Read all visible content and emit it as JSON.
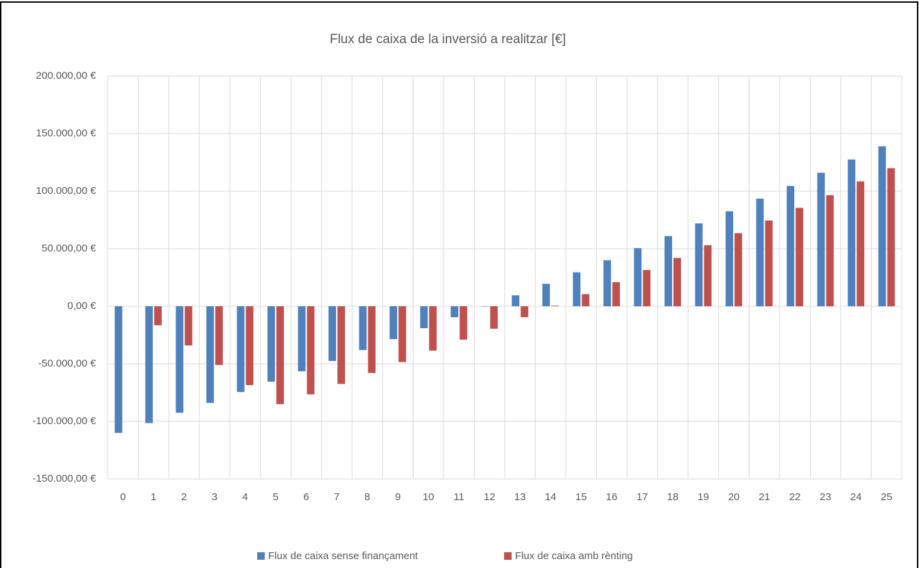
{
  "chart_data": {
    "type": "bar",
    "title": "Flux de caixa de la inversió a realitzar [€]",
    "categories": [
      "0",
      "1",
      "2",
      "3",
      "4",
      "5",
      "6",
      "7",
      "8",
      "9",
      "10",
      "11",
      "12",
      "13",
      "14",
      "15",
      "16",
      "17",
      "18",
      "19",
      "20",
      "21",
      "22",
      "23",
      "24",
      "25"
    ],
    "series": [
      {
        "name": "Flux de caixa sense finançament",
        "color": "#4f81bd",
        "values": [
          -110000,
          -101500,
          -92500,
          -84000,
          -74500,
          -65500,
          -56500,
          -47500,
          -38000,
          -28500,
          -19000,
          -9500,
          -300,
          9500,
          19500,
          29500,
          40000,
          50500,
          61000,
          72000,
          82500,
          93500,
          104500,
          116000,
          127500,
          139000
        ]
      },
      {
        "name": "Flux de caixa amb rènting",
        "color": "#c0504d",
        "values": [
          0,
          -16500,
          -34000,
          -51000,
          -68500,
          -85000,
          -76500,
          -67500,
          -58000,
          -48500,
          -38500,
          -29000,
          -19500,
          -9500,
          500,
          10500,
          21000,
          31500,
          42000,
          53000,
          63500,
          74500,
          85500,
          96500,
          108500,
          120000
        ]
      }
    ],
    "ylim": [
      -150000,
      200000
    ],
    "yticks": [
      {
        "value": -150000,
        "label": "-150.000,00 €"
      },
      {
        "value": -100000,
        "label": "-100.000,00 €"
      },
      {
        "value": -50000,
        "label": "-50.000,00 €"
      },
      {
        "value": 0,
        "label": "0,00 €"
      },
      {
        "value": 50000,
        "label": "50.000,00 €"
      },
      {
        "value": 100000,
        "label": "100.000,00 €"
      },
      {
        "value": 150000,
        "label": "150.000,00 €"
      },
      {
        "value": 200000,
        "label": "200.000,00 €"
      }
    ],
    "grid": true,
    "legend": "bottom"
  }
}
